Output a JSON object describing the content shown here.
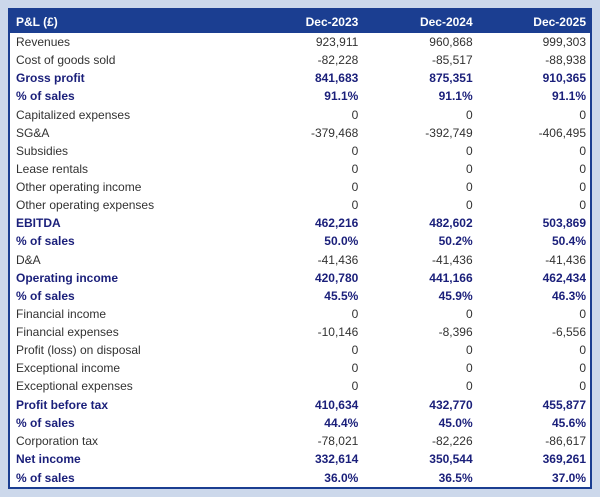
{
  "chart_data": {
    "type": "table",
    "title": "P&L (£)",
    "columns": [
      "Dec-2023",
      "Dec-2024",
      "Dec-2025"
    ],
    "rows": [
      {
        "label": "Revenues",
        "values": [
          "923,911",
          "960,868",
          "999,303"
        ],
        "emphasis": false
      },
      {
        "label": "Cost of goods sold",
        "values": [
          "-82,228",
          "-85,517",
          "-88,938"
        ],
        "emphasis": false
      },
      {
        "label": "Gross profit",
        "values": [
          "841,683",
          "875,351",
          "910,365"
        ],
        "emphasis": true
      },
      {
        "label": "% of sales",
        "values": [
          "91.1%",
          "91.1%",
          "91.1%"
        ],
        "emphasis": true
      },
      {
        "label": "Capitalized expenses",
        "values": [
          "0",
          "0",
          "0"
        ],
        "emphasis": false
      },
      {
        "label": "SG&A",
        "values": [
          "-379,468",
          "-392,749",
          "-406,495"
        ],
        "emphasis": false
      },
      {
        "label": "Subsidies",
        "values": [
          "0",
          "0",
          "0"
        ],
        "emphasis": false
      },
      {
        "label": "Lease rentals",
        "values": [
          "0",
          "0",
          "0"
        ],
        "emphasis": false
      },
      {
        "label": "Other operating income",
        "values": [
          "0",
          "0",
          "0"
        ],
        "emphasis": false
      },
      {
        "label": "Other operating expenses",
        "values": [
          "0",
          "0",
          "0"
        ],
        "emphasis": false
      },
      {
        "label": "EBITDA",
        "values": [
          "462,216",
          "482,602",
          "503,869"
        ],
        "emphasis": true
      },
      {
        "label": "% of sales",
        "values": [
          "50.0%",
          "50.2%",
          "50.4%"
        ],
        "emphasis": true
      },
      {
        "label": "D&A",
        "values": [
          "-41,436",
          "-41,436",
          "-41,436"
        ],
        "emphasis": false
      },
      {
        "label": "Operating income",
        "values": [
          "420,780",
          "441,166",
          "462,434"
        ],
        "emphasis": true
      },
      {
        "label": "% of sales",
        "values": [
          "45.5%",
          "45.9%",
          "46.3%"
        ],
        "emphasis": true
      },
      {
        "label": "Financial income",
        "values": [
          "0",
          "0",
          "0"
        ],
        "emphasis": false
      },
      {
        "label": "Financial expenses",
        "values": [
          "-10,146",
          "-8,396",
          "-6,556"
        ],
        "emphasis": false
      },
      {
        "label": "Profit (loss) on disposal",
        "values": [
          "0",
          "0",
          "0"
        ],
        "emphasis": false
      },
      {
        "label": "Exceptional income",
        "values": [
          "0",
          "0",
          "0"
        ],
        "emphasis": false
      },
      {
        "label": "Exceptional expenses",
        "values": [
          "0",
          "0",
          "0"
        ],
        "emphasis": false
      },
      {
        "label": "Profit before tax",
        "values": [
          "410,634",
          "432,770",
          "455,877"
        ],
        "emphasis": true
      },
      {
        "label": "% of sales",
        "values": [
          "44.4%",
          "45.0%",
          "45.6%"
        ],
        "emphasis": true
      },
      {
        "label": "Corporation tax",
        "values": [
          "-78,021",
          "-82,226",
          "-86,617"
        ],
        "emphasis": false
      },
      {
        "label": "Net income",
        "values": [
          "332,614",
          "350,544",
          "369,261"
        ],
        "emphasis": true
      },
      {
        "label": "% of sales",
        "values": [
          "36.0%",
          "36.5%",
          "37.0%"
        ],
        "emphasis": true
      }
    ]
  },
  "colors": {
    "page_bg": "#ccd8eb",
    "header_bg": "#1b3e91",
    "header_text": "#ffffff",
    "border": "#1b3e91",
    "body_text": "#323232",
    "emphasis_text": "#1a1f7a"
  }
}
